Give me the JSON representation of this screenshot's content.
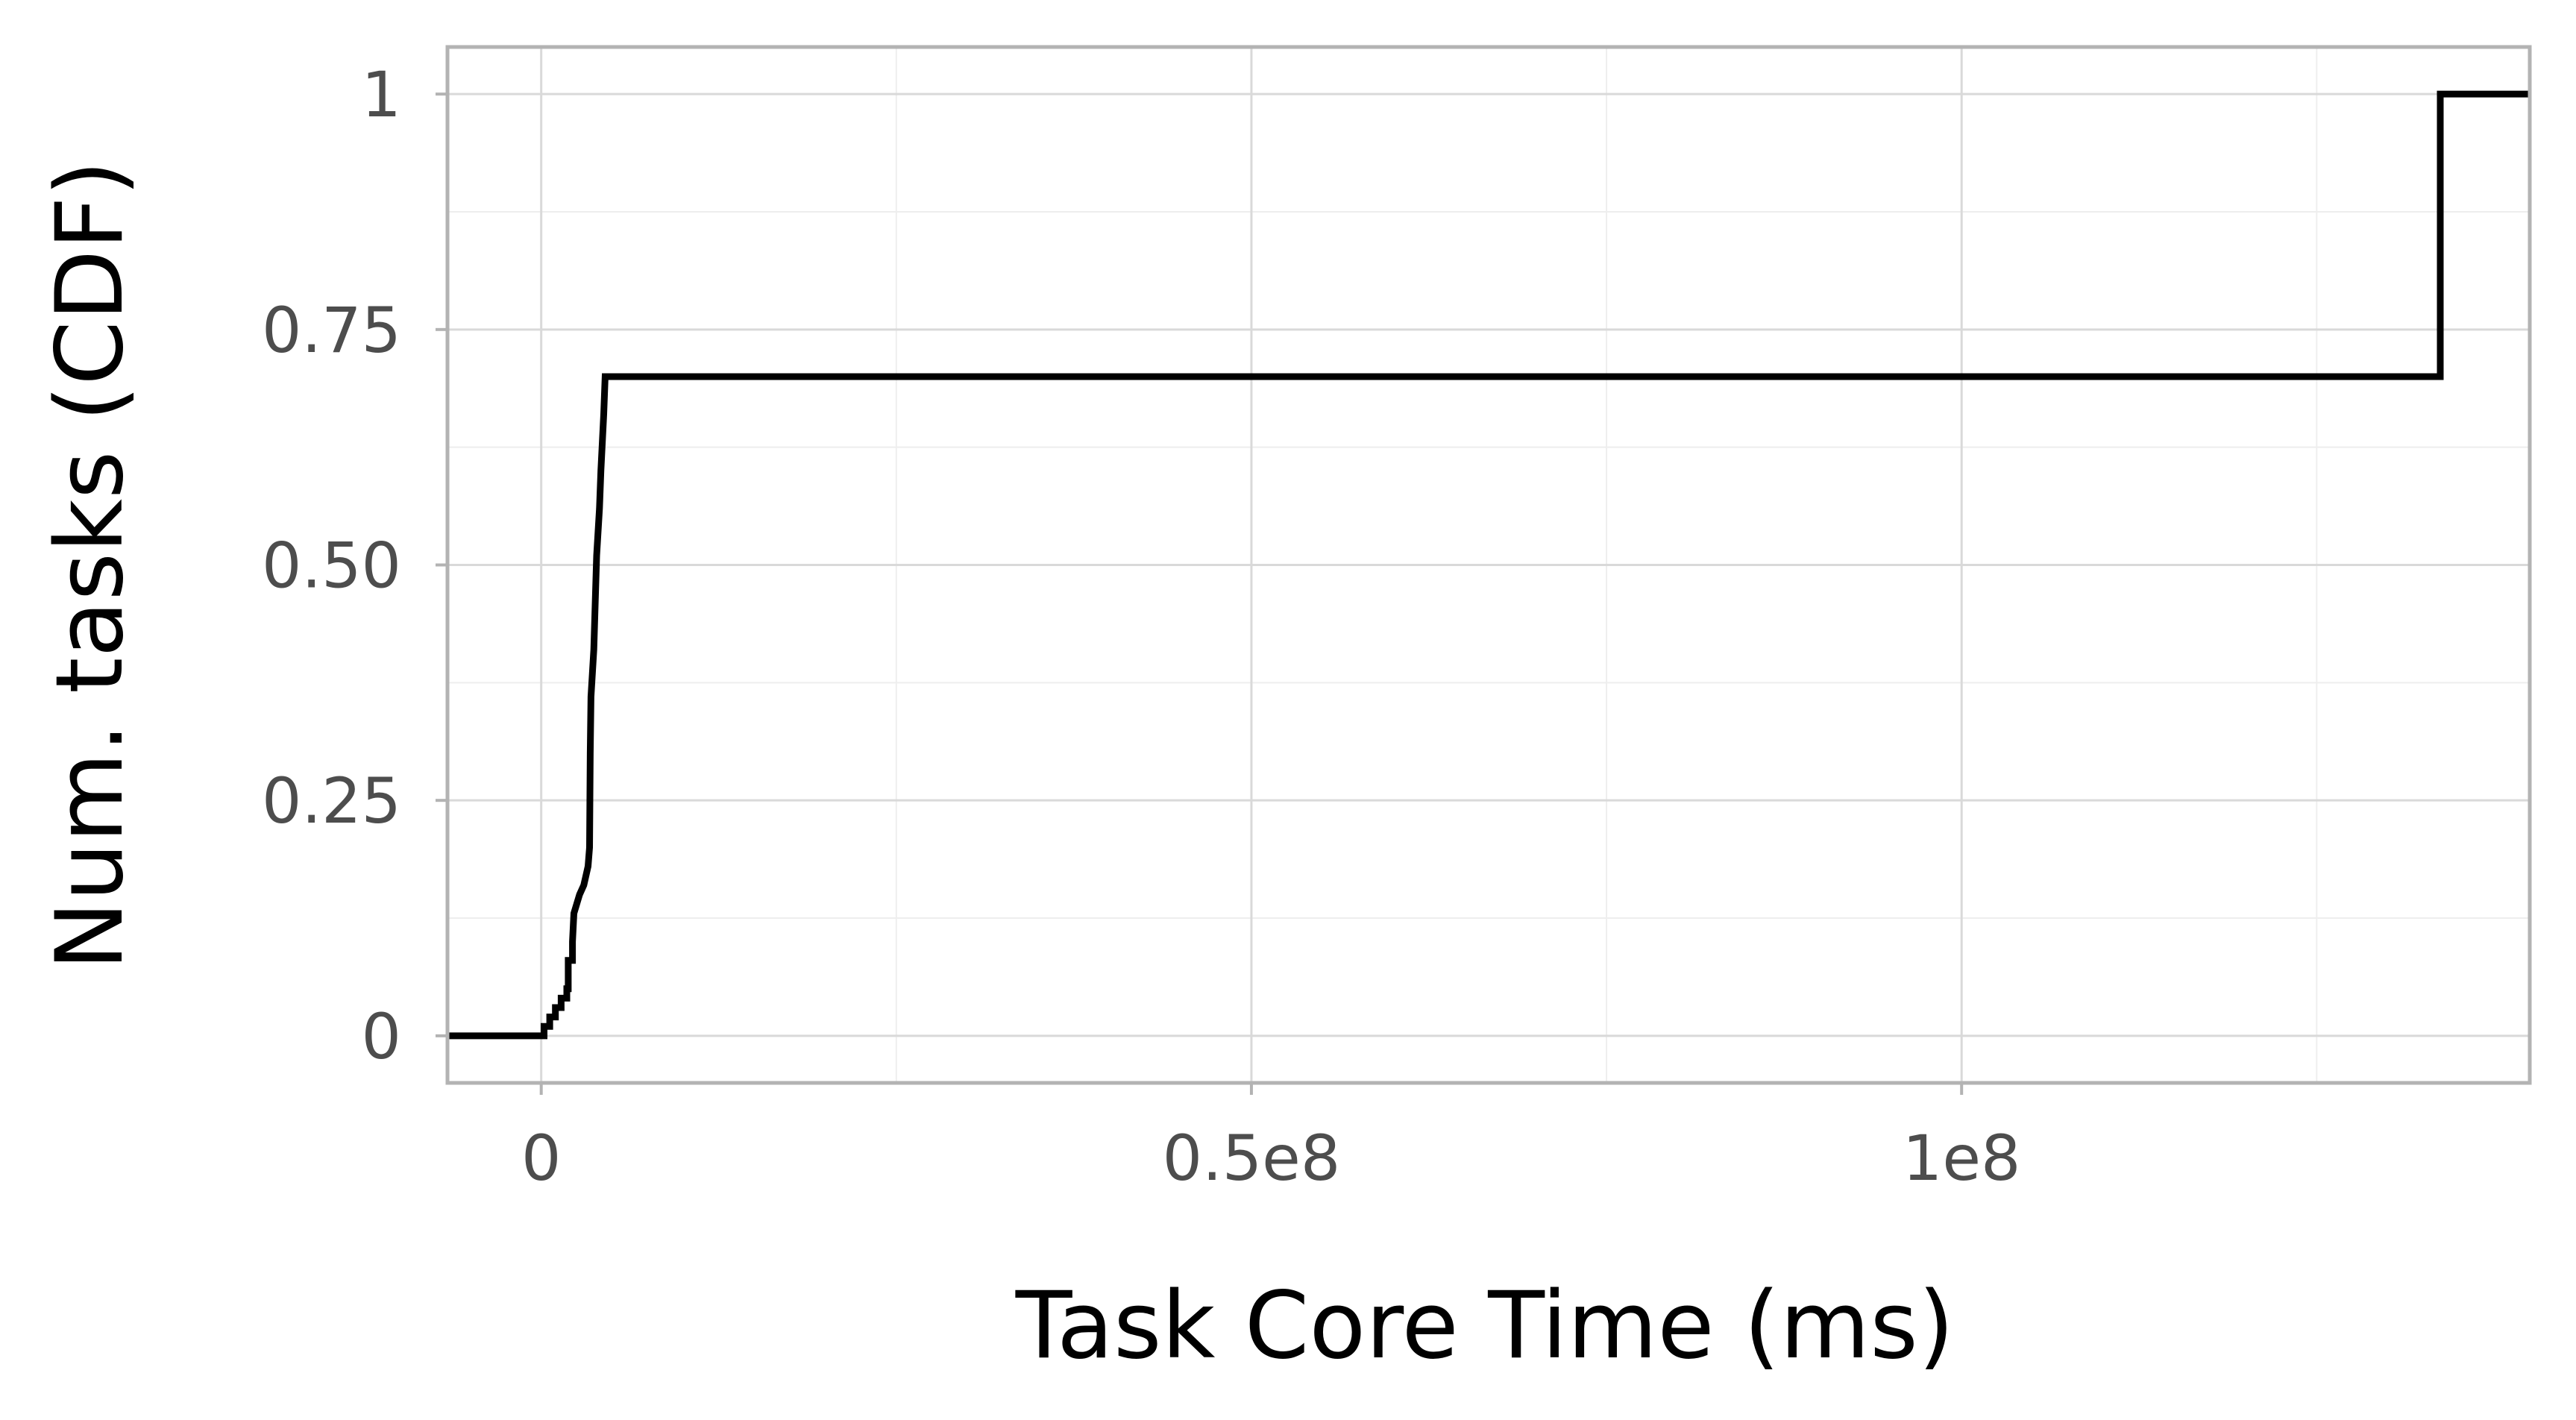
{
  "chart_data": {
    "type": "line",
    "step": true,
    "title": "",
    "xlabel": "Task Core Time (ms)",
    "ylabel": "Num. tasks (CDF)",
    "xlim": [
      -6600000,
      140000000
    ],
    "ylim": [
      -0.05,
      1.05
    ],
    "x_ticks": [
      {
        "value": 0,
        "label": "0"
      },
      {
        "value": 50000000,
        "label": "0.5e8"
      },
      {
        "value": 100000000,
        "label": "1e8"
      }
    ],
    "x_minor_ticks": [
      25000000,
      75000000,
      125000000
    ],
    "y_ticks": [
      {
        "value": 0,
        "label": "0"
      },
      {
        "value": 0.25,
        "label": "0.25"
      },
      {
        "value": 0.5,
        "label": "0.50"
      },
      {
        "value": 0.75,
        "label": "0.75"
      },
      {
        "value": 1,
        "label": "1"
      }
    ],
    "y_minor_ticks": [
      0.125,
      0.375,
      0.625,
      0.875
    ],
    "grid": true,
    "legend": "none",
    "colors": {
      "line": "#000000",
      "panel_border": "#b3b3b3",
      "grid_major": "#d9d9d9",
      "grid_minor": "#eeeeee",
      "tick_text": "#4d4d4d",
      "axis_title": "#000000",
      "background": "#ffffff"
    },
    "series": [
      {
        "values": [
          [
            -6600000,
            0.0
          ],
          [
            200000,
            0.0
          ],
          [
            200000,
            0.01
          ],
          [
            600000,
            0.01
          ],
          [
            600000,
            0.02
          ],
          [
            1000000,
            0.02
          ],
          [
            1000000,
            0.03
          ],
          [
            1400000,
            0.03
          ],
          [
            1400000,
            0.04
          ],
          [
            1800000,
            0.04
          ],
          [
            1800000,
            0.05
          ],
          [
            1900000,
            0.05
          ],
          [
            1900000,
            0.08
          ],
          [
            2200000,
            0.08
          ],
          [
            2200000,
            0.1
          ],
          [
            2300000,
            0.13
          ],
          [
            2500000,
            0.14
          ],
          [
            2700000,
            0.15
          ],
          [
            3000000,
            0.16
          ],
          [
            3300000,
            0.18
          ],
          [
            3400000,
            0.2
          ],
          [
            3450000,
            0.3
          ],
          [
            3500000,
            0.36
          ],
          [
            3700000,
            0.41
          ],
          [
            3900000,
            0.51
          ],
          [
            4100000,
            0.56
          ],
          [
            4200000,
            0.6
          ],
          [
            4400000,
            0.66
          ],
          [
            4500000,
            0.7
          ],
          [
            133700000,
            0.7
          ],
          [
            133700000,
            1.0
          ],
          [
            140000000,
            1.0
          ]
        ]
      }
    ]
  }
}
